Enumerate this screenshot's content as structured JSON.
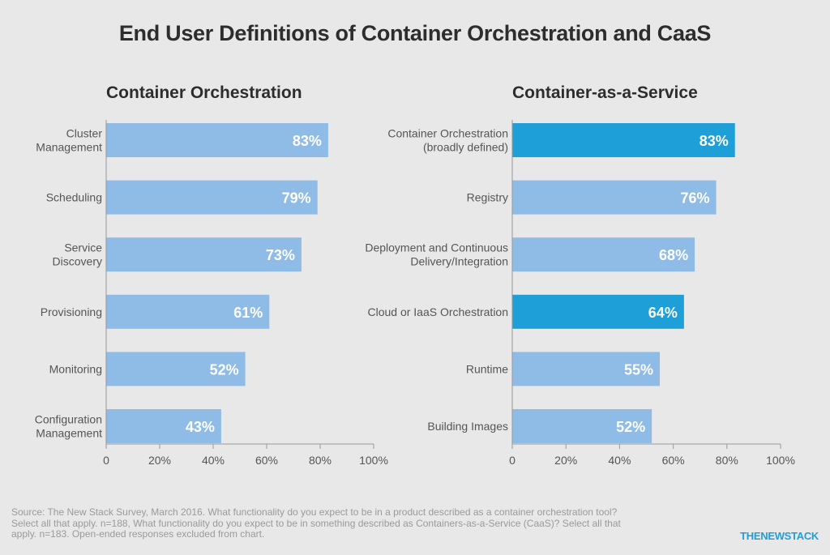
{
  "title": "End User Definitions of Container Orchestration and CaaS",
  "source": "Source: The New Stack Survey, March 2016. What functionality do you expect to be in a product described as a container orchestration tool? Select all that apply. n=188, What functionality do you expect to be in something described as Containers-as-a-Service (CaaS)? Select all that apply. n=183. Open-ended responses excluded from chart.",
  "brand": "THENEWSTACK",
  "colors": {
    "bar": "#8fbce6",
    "highlight": "#1f9fd8",
    "axis": "#999999",
    "label": "#555555",
    "value_label": "#ffffff"
  },
  "chart_data": [
    {
      "type": "bar",
      "orientation": "horizontal",
      "title": "Container Orchestration",
      "categories": [
        "Cluster\nManagement",
        "Scheduling",
        "Service\nDiscovery",
        "Provisioning",
        "Monitoring",
        "Configuration\nManagement"
      ],
      "values": [
        83,
        79,
        73,
        61,
        52,
        43
      ],
      "value_labels": [
        "83%",
        "79%",
        "73%",
        "61%",
        "52%",
        "43%"
      ],
      "highlight": [
        false,
        false,
        false,
        false,
        false,
        false
      ],
      "xlim": [
        0,
        100
      ],
      "xticks": [
        "0",
        "20%",
        "40%",
        "60%",
        "80%",
        "100%"
      ],
      "grid": false
    },
    {
      "type": "bar",
      "orientation": "horizontal",
      "title": "Container-as-a-Service",
      "categories": [
        "Container Orchestration\n(broadly defined)",
        "Registry",
        "Deployment and Continuous\nDelivery/Integration",
        "Cloud or IaaS Orchestration",
        "Runtime",
        "Building Images"
      ],
      "values": [
        83,
        76,
        68,
        64,
        55,
        52
      ],
      "value_labels": [
        "83%",
        "76%",
        "68%",
        "64%",
        "55%",
        "52%"
      ],
      "highlight": [
        true,
        false,
        false,
        true,
        false,
        false
      ],
      "xlim": [
        0,
        100
      ],
      "xticks": [
        "0",
        "20%",
        "40%",
        "60%",
        "80%",
        "100%"
      ],
      "grid": false
    }
  ]
}
